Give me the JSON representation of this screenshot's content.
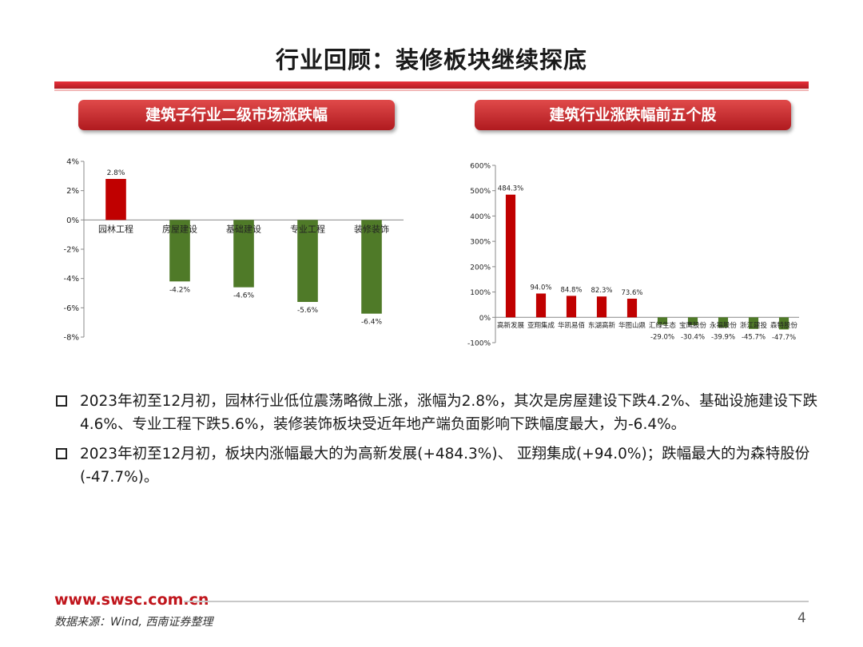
{
  "page": {
    "title": "行业回顾：装修板块继续探底",
    "pill_left": "建筑子行业二级市场涨跌幅",
    "pill_right": "建筑行业涨跌幅前五个股",
    "bullets": [
      "2023年初至12月初，园林行业低位震荡略微上涨，涨幅为2.8%，其次是房屋建设下跌4.2%、基础设施建设下跌4.6%、专业工程下跌5.6%，装修装饰板块受近年地产端负面影响下跌幅度最大，为-6.4%。",
      "2023年初至12月初，板块内涨幅最大的为高新发展(+484.3%)、 亚翔集成(+94.0%)；跌幅最大的为森特股份(-47.7%)。"
    ],
    "footer_url": "www.swsc.com.cn",
    "footer_source": "数据来源：Wind, 西南证券整理",
    "page_number": "4"
  },
  "colors": {
    "red": "#c00000",
    "green": "#4f7a28",
    "accent": "#c0151c"
  },
  "chart_data": [
    {
      "type": "bar",
      "title": "建筑子行业二级市场涨跌幅",
      "categories": [
        "园林工程",
        "房屋建设",
        "基础建设",
        "专业工程",
        "装修装饰"
      ],
      "values": [
        2.8,
        -4.2,
        -4.6,
        -5.6,
        -6.4
      ],
      "data_labels": [
        "2.8%",
        "-4.2%",
        "-4.6%",
        "-5.6%",
        "-6.4%"
      ],
      "ylim": [
        -8,
        4
      ],
      "yticks": [
        4,
        2,
        0,
        -2,
        -4,
        -6,
        -8
      ],
      "ytick_labels": [
        "4%",
        "2%",
        "0%",
        "-2%",
        "-4%",
        "-6%",
        "-8%"
      ],
      "xlabel": "",
      "ylabel": ""
    },
    {
      "type": "bar",
      "title": "建筑行业涨跌幅前五个股",
      "categories": [
        "高新发展",
        "亚翔集成",
        "华凯易佰",
        "东湖高新",
        "华图山鼎",
        "汇绿生态",
        "宝鹰股份",
        "永福股份",
        "浙江建投",
        "森特股份"
      ],
      "values": [
        484.3,
        94.0,
        84.8,
        82.3,
        73.6,
        -29.0,
        -30.4,
        -39.9,
        -45.7,
        -47.7
      ],
      "data_labels": [
        "484.3%",
        "94.0%",
        "84.8%",
        "82.3%",
        "73.6%",
        "-29.0%",
        "-30.4%",
        "-39.9%",
        "-45.7%",
        "-47.7%"
      ],
      "ylim": [
        -100,
        600
      ],
      "yticks": [
        600,
        500,
        400,
        300,
        200,
        100,
        0,
        -100
      ],
      "ytick_labels": [
        "600%",
        "500%",
        "400%",
        "300%",
        "200%",
        "100%",
        "0%",
        "-100%"
      ],
      "xlabel": "",
      "ylabel": ""
    }
  ]
}
